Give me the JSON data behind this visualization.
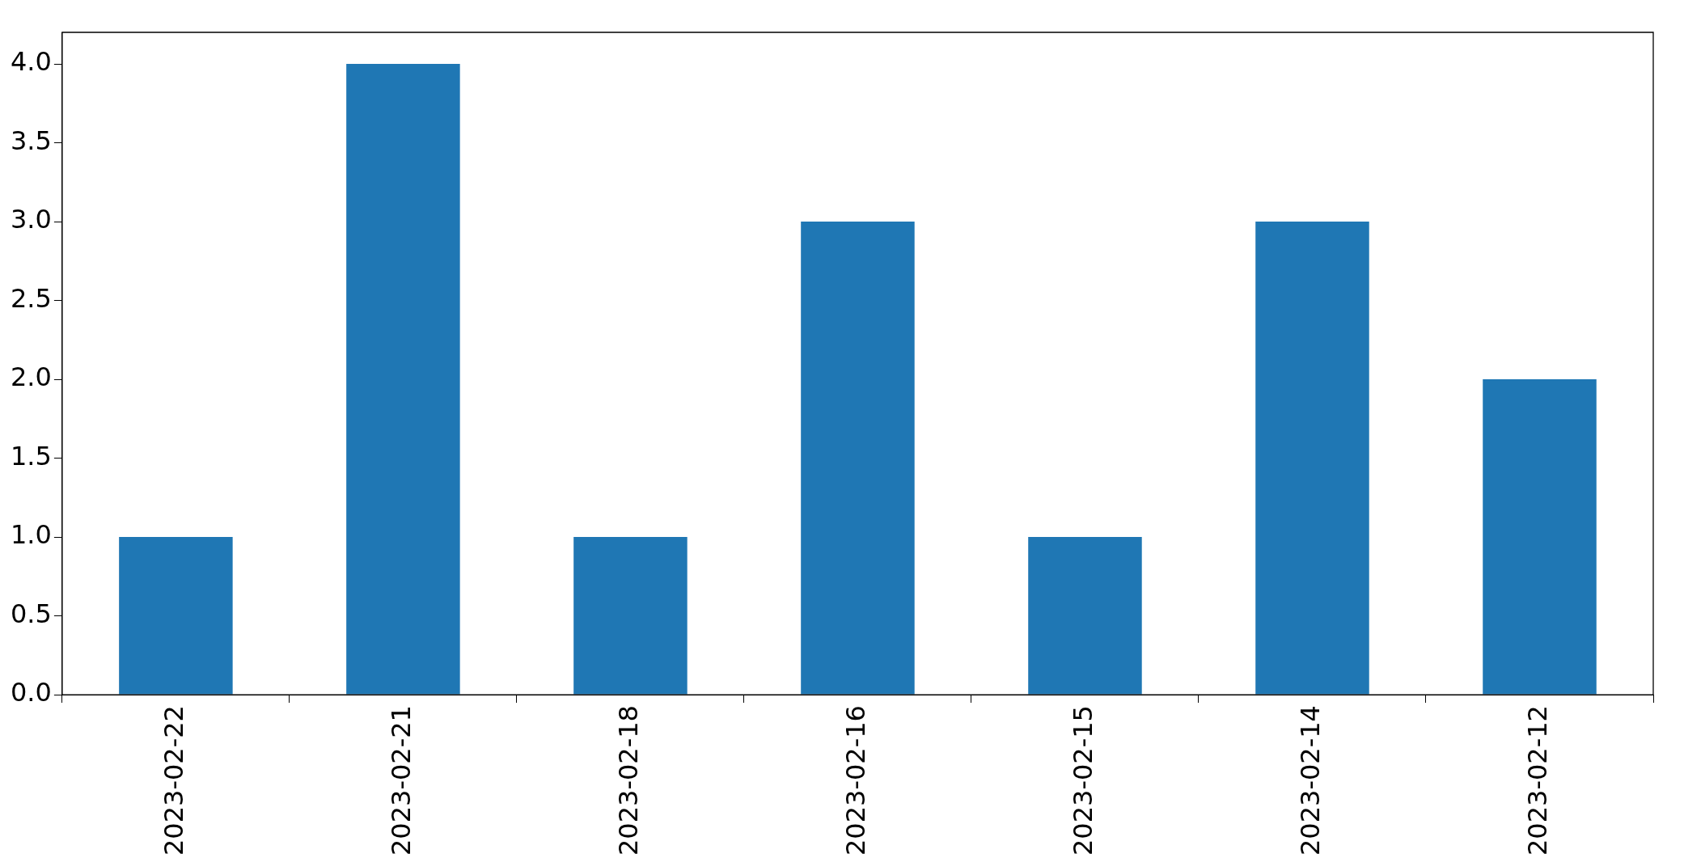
{
  "chart_data": {
    "type": "bar",
    "categories": [
      "2023-02-22",
      "2023-02-21",
      "2023-02-18",
      "2023-02-16",
      "2023-02-15",
      "2023-02-14",
      "2023-02-12"
    ],
    "values": [
      1,
      4,
      1,
      3,
      1,
      3,
      2
    ],
    "color": "#1f77b4",
    "ylim": [
      0,
      4.2
    ],
    "yticks": [
      {
        "value": 0,
        "label": "0.0"
      },
      {
        "value": 0.5,
        "label": "0.5"
      },
      {
        "value": 1,
        "label": "1.0"
      },
      {
        "value": 1.5,
        "label": "1.5"
      },
      {
        "value": 2,
        "label": "2.0"
      },
      {
        "value": 2.5,
        "label": "2.5"
      },
      {
        "value": 3,
        "label": "3.0"
      },
      {
        "value": 3.5,
        "label": "3.5"
      },
      {
        "value": 4,
        "label": "4.0"
      }
    ],
    "grid": false,
    "legend": false
  }
}
